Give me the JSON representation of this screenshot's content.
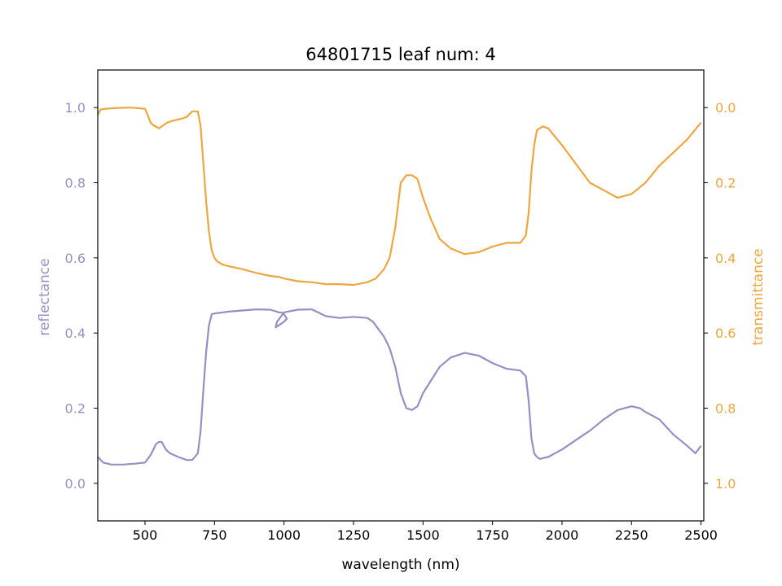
{
  "chart_data": {
    "type": "line",
    "title": "64801715 leaf num: 4",
    "xlabel": "wavelength (nm)",
    "xlim": [
      330,
      2510
    ],
    "xticks": [
      500,
      750,
      1000,
      1250,
      1500,
      1750,
      2000,
      2250,
      2500
    ],
    "grid": false,
    "left_axis": {
      "label": "reflectance",
      "ylim": [
        -0.1,
        1.1
      ],
      "ticks": [
        0.0,
        0.2,
        0.4,
        0.6,
        0.8,
        1.0
      ],
      "tick_labels": [
        "0.0",
        "0.2",
        "0.4",
        "0.6",
        "0.8",
        "1.0"
      ],
      "inverted": false,
      "color": "#9590c4"
    },
    "right_axis": {
      "label": "transmittance",
      "ylim": [
        1.1,
        -0.1
      ],
      "ticks": [
        0.0,
        0.2,
        0.4,
        0.6,
        0.8,
        1.0
      ],
      "tick_labels": [
        "0.0",
        "0.2",
        "0.4",
        "0.6",
        "0.8",
        "1.0"
      ],
      "inverted": true,
      "color": "#eea641"
    },
    "series": [
      {
        "axis": "left",
        "color": "#9590c4",
        "x": [
          330,
          350,
          380,
          420,
          460,
          500,
          520,
          540,
          550,
          560,
          575,
          590,
          620,
          650,
          670,
          690,
          700,
          710,
          720,
          730,
          740,
          750,
          780,
          800,
          850,
          900,
          950,
          970,
          980,
          990,
          1000,
          1010,
          1000,
          980,
          970,
          975,
          1000,
          1050,
          1100,
          1150,
          1200,
          1250,
          1300,
          1320,
          1340,
          1360,
          1380,
          1400,
          1420,
          1440,
          1460,
          1480,
          1500,
          1530,
          1560,
          1600,
          1650,
          1700,
          1750,
          1800,
          1850,
          1870,
          1880,
          1890,
          1900,
          1910,
          1920,
          1950,
          2000,
          2050,
          2100,
          2150,
          2200,
          2250,
          2280,
          2300,
          2350,
          2400,
          2450,
          2480,
          2500
        ],
        "values": [
          0.07,
          0.055,
          0.05,
          0.05,
          0.052,
          0.055,
          0.075,
          0.105,
          0.11,
          0.11,
          0.09,
          0.08,
          0.07,
          0.062,
          0.062,
          0.08,
          0.14,
          0.25,
          0.35,
          0.42,
          0.45,
          0.452,
          0.455,
          0.457,
          0.46,
          0.463,
          0.462,
          0.458,
          0.455,
          0.455,
          0.45,
          0.438,
          0.43,
          0.42,
          0.415,
          0.43,
          0.455,
          0.462,
          0.463,
          0.445,
          0.44,
          0.443,
          0.44,
          0.43,
          0.41,
          0.39,
          0.36,
          0.31,
          0.24,
          0.2,
          0.195,
          0.205,
          0.24,
          0.275,
          0.31,
          0.335,
          0.347,
          0.34,
          0.32,
          0.305,
          0.3,
          0.285,
          0.22,
          0.12,
          0.08,
          0.07,
          0.065,
          0.07,
          0.09,
          0.115,
          0.14,
          0.17,
          0.195,
          0.205,
          0.2,
          0.19,
          0.17,
          0.13,
          0.1,
          0.08,
          0.1
        ]
      },
      {
        "axis": "right",
        "color": "#eea641",
        "x": [
          330,
          340,
          360,
          400,
          450,
          500,
          510,
          520,
          530,
          550,
          560,
          580,
          600,
          630,
          650,
          670,
          690,
          700,
          710,
          720,
          730,
          740,
          750,
          760,
          780,
          800,
          850,
          900,
          950,
          970,
          980,
          1000,
          1050,
          1100,
          1150,
          1180,
          1200,
          1250,
          1300,
          1330,
          1360,
          1380,
          1400,
          1420,
          1440,
          1460,
          1480,
          1500,
          1530,
          1560,
          1600,
          1650,
          1700,
          1750,
          1800,
          1850,
          1870,
          1880,
          1890,
          1900,
          1910,
          1930,
          1950,
          2000,
          2050,
          2100,
          2150,
          2200,
          2250,
          2300,
          2350,
          2400,
          2450,
          2500
        ],
        "values": [
          0.02,
          0.005,
          0.003,
          0.001,
          0.0,
          0.003,
          0.02,
          0.04,
          0.047,
          0.055,
          0.05,
          0.04,
          0.035,
          0.03,
          0.025,
          0.01,
          0.01,
          0.05,
          0.15,
          0.25,
          0.33,
          0.38,
          0.4,
          0.41,
          0.418,
          0.422,
          0.43,
          0.44,
          0.448,
          0.45,
          0.45,
          0.455,
          0.462,
          0.465,
          0.47,
          0.47,
          0.47,
          0.472,
          0.465,
          0.455,
          0.43,
          0.4,
          0.32,
          0.2,
          0.18,
          0.18,
          0.19,
          0.24,
          0.3,
          0.35,
          0.375,
          0.39,
          0.385,
          0.37,
          0.36,
          0.36,
          0.34,
          0.28,
          0.17,
          0.1,
          0.06,
          0.05,
          0.055,
          0.1,
          0.15,
          0.2,
          0.22,
          0.24,
          0.23,
          0.2,
          0.155,
          0.12,
          0.085,
          0.04
        ]
      }
    ]
  }
}
